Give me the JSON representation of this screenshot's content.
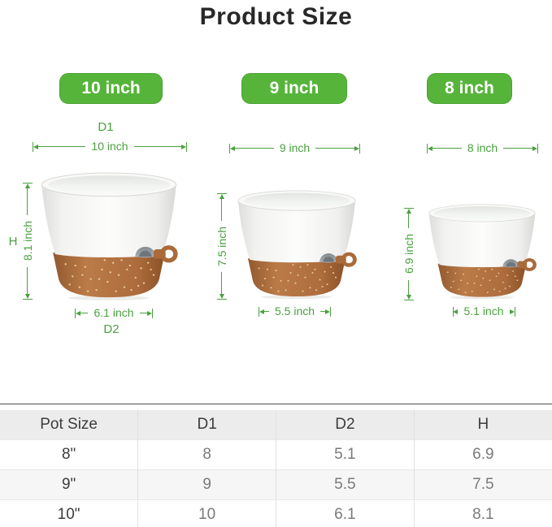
{
  "title": "Product Size",
  "colors": {
    "badge_green": "#56b43a",
    "dimension_green": "#49a13e",
    "terracotta": "#aa6a3a"
  },
  "pots": [
    {
      "badge": "10 inch",
      "d1_annotation": "D1",
      "d1": "10 inch",
      "h_annotation": "H",
      "h": "8.1 inch",
      "d2": "6.1 inch",
      "d2_annotation": "D2"
    },
    {
      "badge": "9 inch",
      "d1": "9 inch",
      "h": "7.5 inch",
      "d2": "5.5 inch"
    },
    {
      "badge": "8 inch",
      "d1": "8 inch",
      "h": "6.9 inch",
      "d2": "5.1 inch"
    }
  ],
  "table": {
    "headers": [
      "Pot Size",
      "D1",
      "D2",
      "H"
    ],
    "rows": [
      [
        "8\"",
        "8",
        "5.1",
        "6.9"
      ],
      [
        "9\"",
        "9",
        "5.5",
        "7.5"
      ],
      [
        "10\"",
        "10",
        "6.1",
        "8.1"
      ]
    ]
  }
}
